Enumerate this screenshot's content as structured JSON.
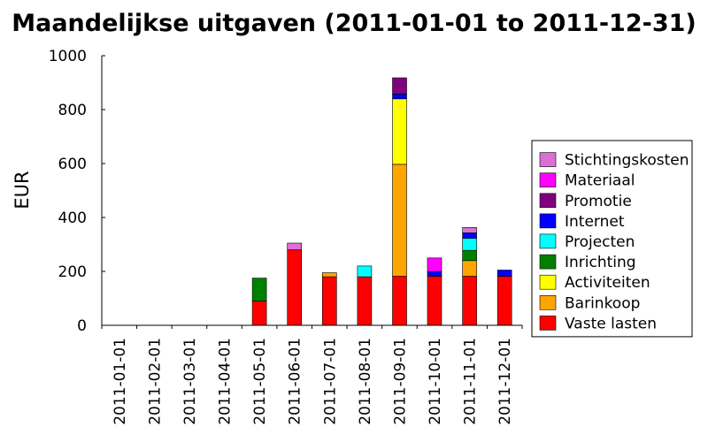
{
  "chart_data": {
    "type": "bar",
    "stacked": true,
    "title": "Maandelijkse uitgaven (2011-01-01 to 2011-12-31)",
    "xlabel": "",
    "ylabel": "EUR",
    "ylim": [
      0,
      1000
    ],
    "yticks": [
      0,
      200,
      400,
      600,
      800,
      1000
    ],
    "grid": false,
    "legend_position": "right",
    "categories": [
      "2011-01-01",
      "2011-02-01",
      "2011-03-01",
      "2011-04-01",
      "2011-05-01",
      "2011-06-01",
      "2011-07-01",
      "2011-08-01",
      "2011-09-01",
      "2011-10-01",
      "2011-11-01",
      "2011-12-01"
    ],
    "series": [
      {
        "name": "Vaste lasten",
        "color": "#ff0000",
        "values": [
          0,
          0,
          0,
          0,
          90,
          280,
          180,
          180,
          182,
          182,
          182,
          182
        ]
      },
      {
        "name": "Barinkoop",
        "color": "#ffa500",
        "values": [
          0,
          0,
          0,
          0,
          0,
          0,
          15,
          0,
          415,
          0,
          58,
          0
        ]
      },
      {
        "name": "Activiteiten",
        "color": "#ffff00",
        "values": [
          0,
          0,
          0,
          0,
          0,
          0,
          0,
          0,
          243,
          0,
          0,
          0
        ]
      },
      {
        "name": "Inrichting",
        "color": "#008000",
        "values": [
          0,
          0,
          0,
          0,
          85,
          0,
          0,
          0,
          0,
          0,
          38,
          0
        ]
      },
      {
        "name": "Projecten",
        "color": "#00ffff",
        "values": [
          0,
          0,
          0,
          0,
          0,
          0,
          0,
          40,
          0,
          0,
          45,
          0
        ]
      },
      {
        "name": "Internet",
        "color": "#0000ff",
        "values": [
          0,
          0,
          0,
          0,
          0,
          0,
          0,
          0,
          18,
          18,
          20,
          23
        ]
      },
      {
        "name": "Promotie",
        "color": "#800080",
        "values": [
          0,
          0,
          0,
          0,
          0,
          0,
          0,
          0,
          60,
          0,
          0,
          0
        ]
      },
      {
        "name": "Materiaal",
        "color": "#ff00ff",
        "values": [
          0,
          0,
          0,
          0,
          0,
          0,
          0,
          0,
          0,
          50,
          0,
          0
        ]
      },
      {
        "name": "Stichtingskosten",
        "color": "#da70d6",
        "values": [
          0,
          0,
          0,
          0,
          0,
          25,
          0,
          0,
          0,
          0,
          20,
          0
        ]
      }
    ]
  }
}
